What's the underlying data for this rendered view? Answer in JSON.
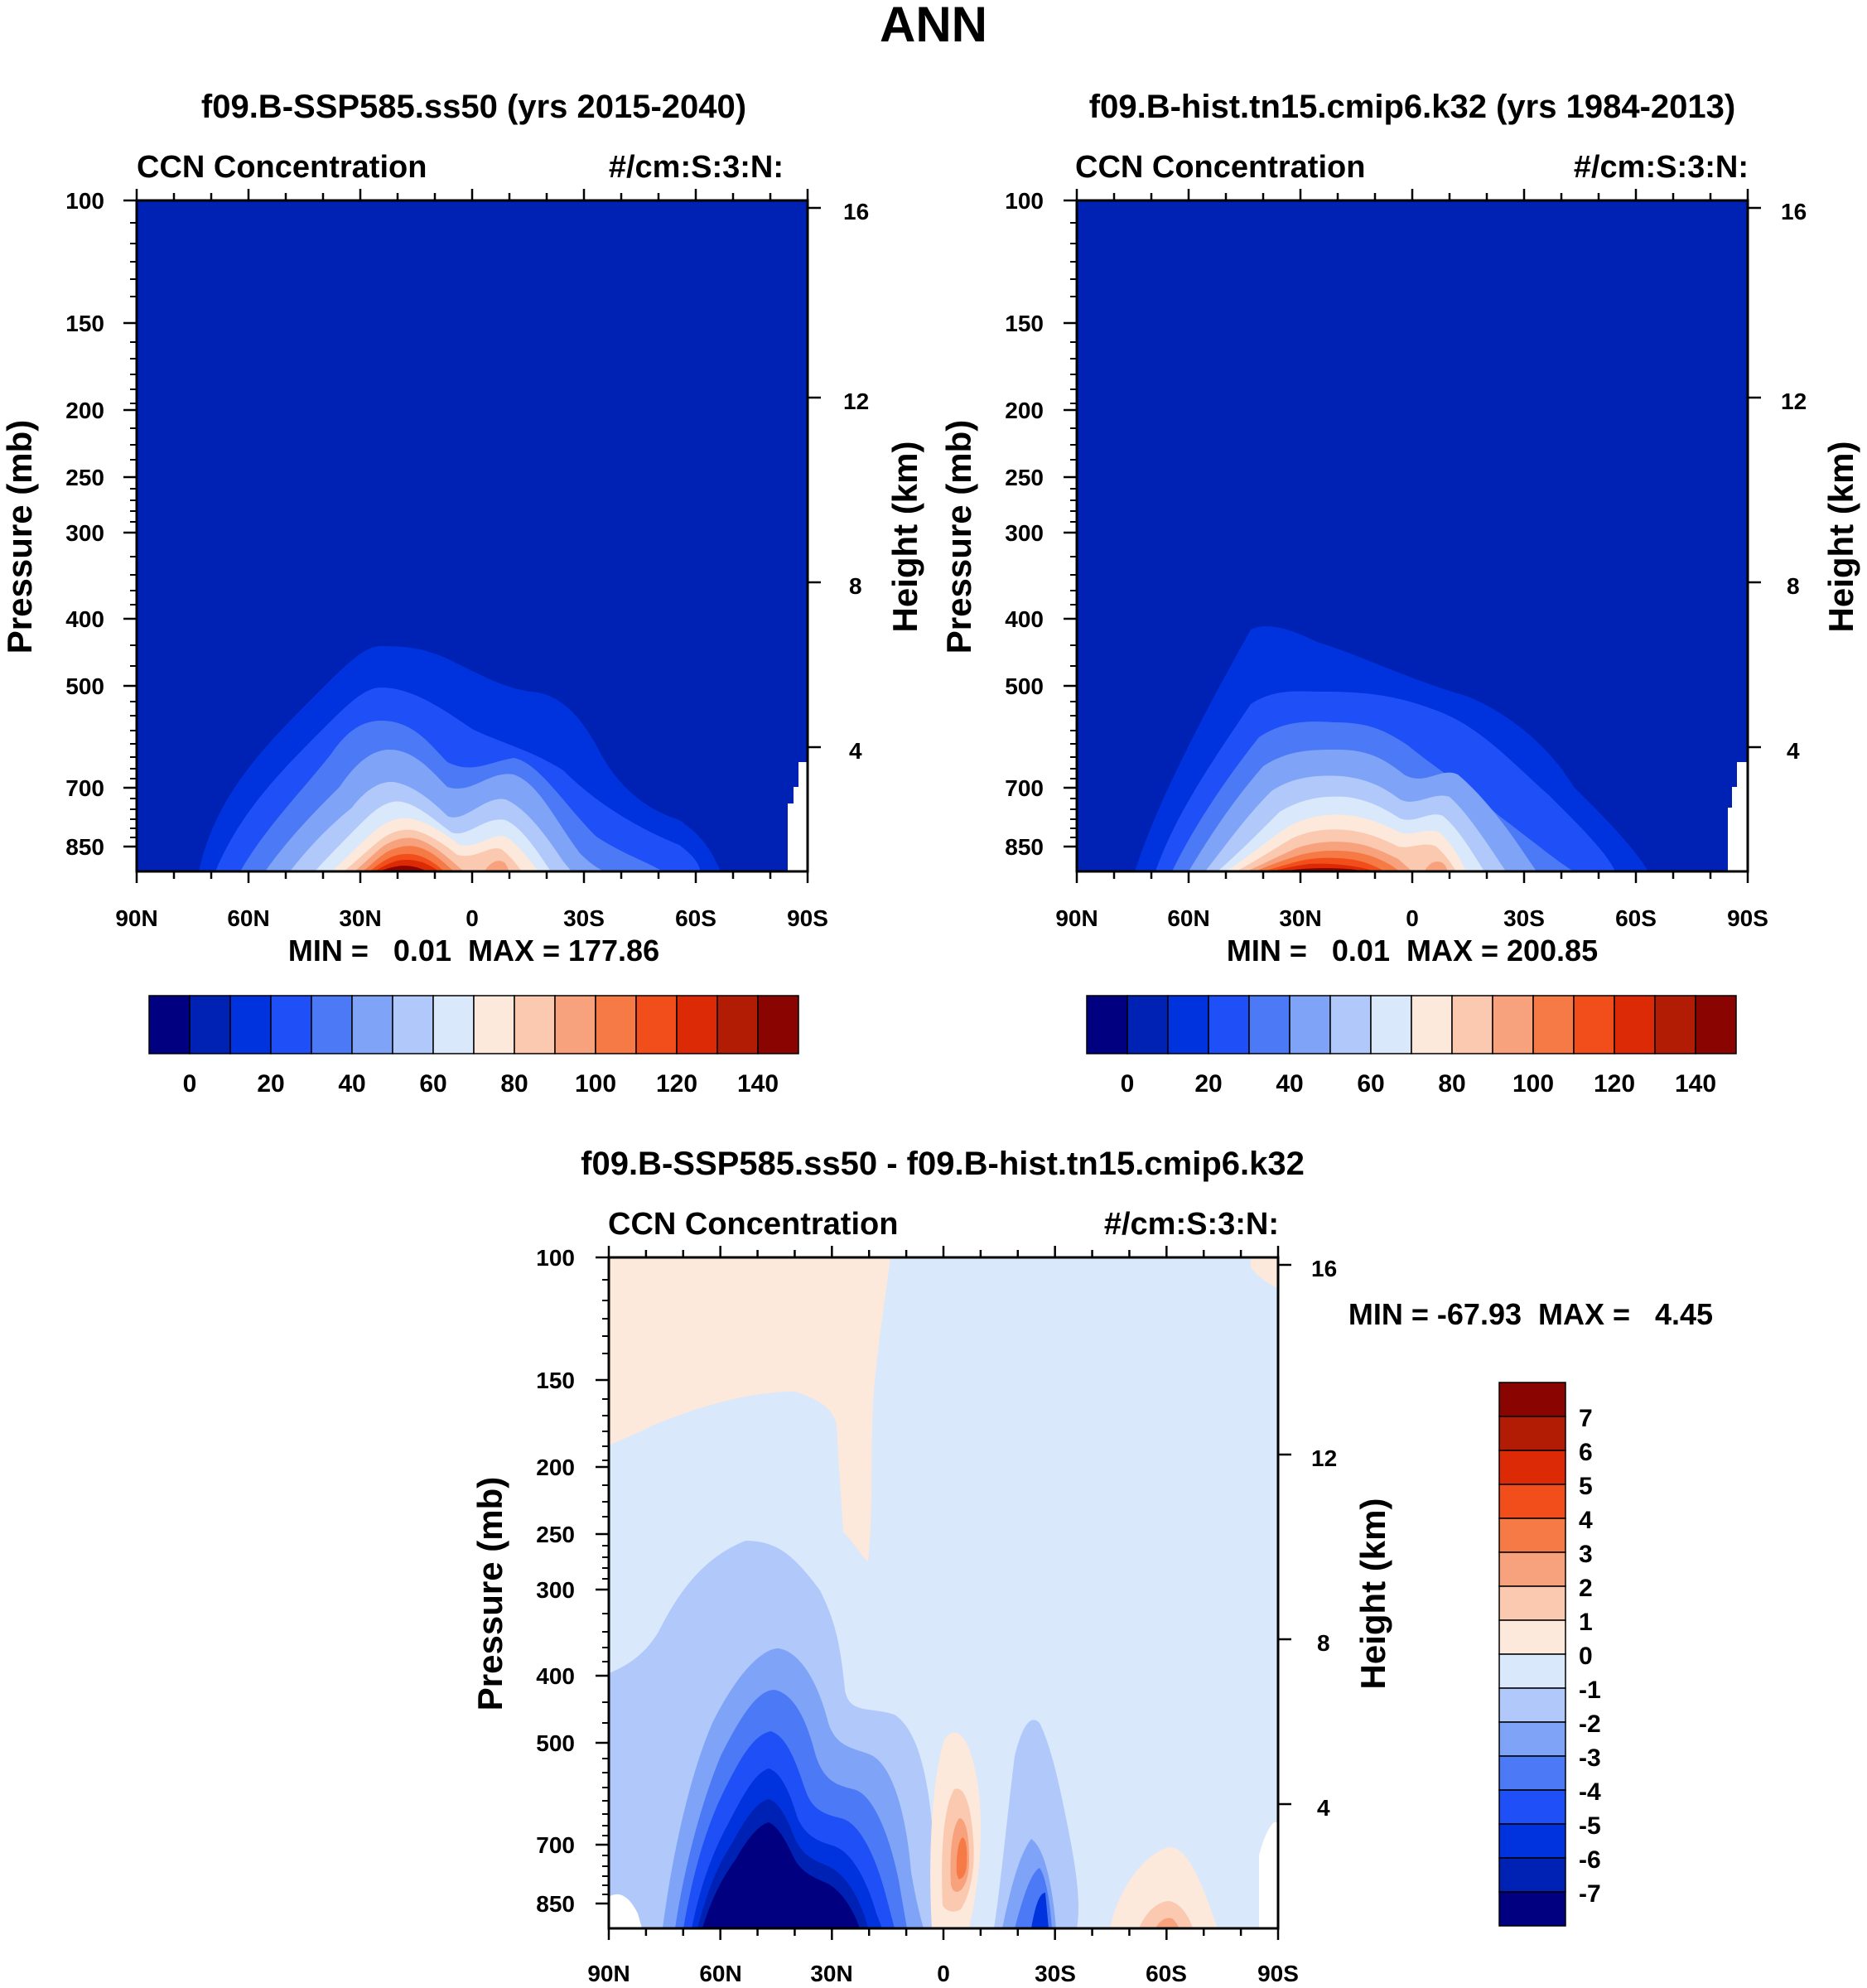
{
  "page_title": "ANN",
  "chart_data": [
    {
      "type": "heatmap",
      "id": "panel-left",
      "title": "f09.B-SSP585.ss50 (yrs 2015-2040)",
      "left_string": "CCN Concentration",
      "right_string": "#/cm:S:3:N:",
      "ylabel": "Pressure (mb)",
      "y2label": "Height (km)",
      "xticks": [
        "90N",
        "60N",
        "30N",
        "0",
        "30S",
        "60S",
        "90S"
      ],
      "yticks": [
        "100",
        "150",
        "200",
        "250",
        "300",
        "400",
        "500",
        "700",
        "850"
      ],
      "y2ticks": [
        "16",
        "12",
        "8",
        "4"
      ],
      "stats": "MIN =   0.01  MAX = 177.86",
      "colorbar_labels": [
        "0",
        "20",
        "40",
        "60",
        "80",
        "100",
        "120",
        "140"
      ],
      "colors": [
        "#000080",
        "#0022b4",
        "#0033dd",
        "#1f4ff6",
        "#4c7af6",
        "#7fa4f7",
        "#b0c9fa",
        "#d9e8fb",
        "#fde9db",
        "#fbc8b0",
        "#f8a17d",
        "#f57a46",
        "#f24e1c",
        "#db2a05",
        "#b21c04",
        "#8a0402"
      ]
    },
    {
      "type": "heatmap",
      "id": "panel-right",
      "title": "f09.B-hist.tn15.cmip6.k32 (yrs 1984-2013)",
      "left_string": "CCN Concentration",
      "right_string": "#/cm:S:3:N:",
      "ylabel": "Pressure (mb)",
      "y2label": "Height (km)",
      "xticks": [
        "90N",
        "60N",
        "30N",
        "0",
        "30S",
        "60S",
        "90S"
      ],
      "yticks": [
        "100",
        "150",
        "200",
        "250",
        "300",
        "400",
        "500",
        "700",
        "850"
      ],
      "y2ticks": [
        "16",
        "12",
        "8",
        "4"
      ],
      "stats": "MIN =   0.01  MAX = 200.85",
      "colorbar_labels": [
        "0",
        "20",
        "40",
        "60",
        "80",
        "100",
        "120",
        "140"
      ],
      "colors": [
        "#000080",
        "#0022b4",
        "#0033dd",
        "#1f4ff6",
        "#4c7af6",
        "#7fa4f7",
        "#b0c9fa",
        "#d9e8fb",
        "#fde9db",
        "#fbc8b0",
        "#f8a17d",
        "#f57a46",
        "#f24e1c",
        "#db2a05",
        "#b21c04",
        "#8a0402"
      ]
    },
    {
      "type": "heatmap",
      "id": "panel-diff",
      "title": "f09.B-SSP585.ss50 - f09.B-hist.tn15.cmip6.k32",
      "left_string": "CCN Concentration",
      "right_string": "#/cm:S:3:N:",
      "ylabel": "Pressure (mb)",
      "y2label": "Height (km)",
      "xticks": [
        "90N",
        "60N",
        "30N",
        "0",
        "30S",
        "60S",
        "90S"
      ],
      "yticks": [
        "100",
        "150",
        "200",
        "250",
        "300",
        "400",
        "500",
        "700",
        "850"
      ],
      "y2ticks": [
        "16",
        "12",
        "8",
        "4"
      ],
      "stats": "MIN = -67.93  MAX =   4.45",
      "colorbar_labels": [
        "7",
        "6",
        "5",
        "4",
        "3",
        "2",
        "1",
        "0",
        "-1",
        "-2",
        "-3",
        "-4",
        "-5",
        "-6",
        "-7"
      ],
      "colors": [
        "#8a0402",
        "#b21c04",
        "#db2a05",
        "#f24e1c",
        "#f57a46",
        "#f8a17d",
        "#fbc8b0",
        "#fde9db",
        "#d9e8fb",
        "#b0c9fa",
        "#7fa4f7",
        "#4c7af6",
        "#1f4ff6",
        "#0033dd",
        "#0022b4",
        "#000080"
      ]
    }
  ]
}
